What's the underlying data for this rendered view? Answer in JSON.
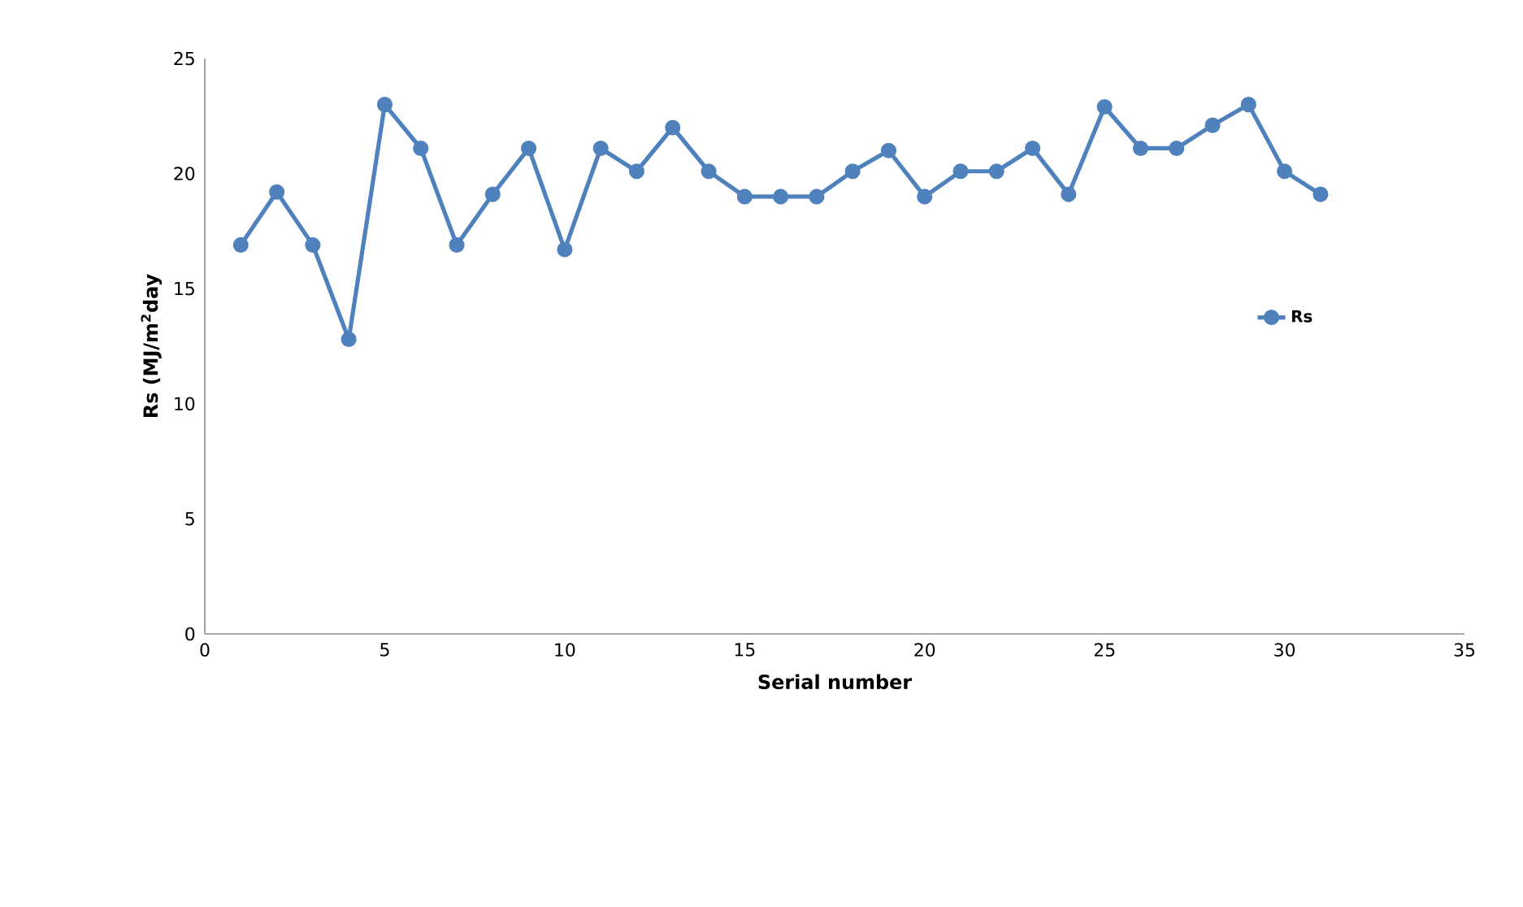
{
  "chart_data": {
    "type": "line",
    "xlabel": "Serial number",
    "ylabel": "Rs (MJ/m$^{2}$day",
    "x": [
      1,
      2,
      3,
      4,
      5,
      6,
      7,
      8,
      9,
      10,
      11,
      12,
      13,
      14,
      15,
      16,
      17,
      18,
      19,
      20,
      21,
      22,
      23,
      24,
      25,
      26,
      27,
      28,
      29,
      30,
      31
    ],
    "series": [
      {
        "name": "Rs",
        "color": "#4f81bd",
        "values": [
          16.9,
          19.2,
          16.9,
          12.8,
          23.0,
          21.1,
          16.9,
          19.1,
          21.1,
          16.7,
          21.1,
          20.1,
          22.0,
          20.1,
          19.0,
          19.0,
          19.0,
          20.1,
          21.0,
          19.0,
          20.1,
          20.1,
          21.1,
          19.1,
          22.9,
          21.1,
          21.1,
          22.1,
          23.0,
          20.1,
          19.1
        ]
      }
    ],
    "xlim": [
      0,
      35
    ],
    "xticks": [
      0,
      5,
      10,
      15,
      20,
      25,
      30,
      35
    ],
    "ylim": [
      0,
      25
    ],
    "yticks": [
      0,
      5,
      10,
      15,
      20,
      25
    ],
    "grid": false,
    "legend": "right",
    "marker": "circle",
    "line_style": "solid"
  }
}
